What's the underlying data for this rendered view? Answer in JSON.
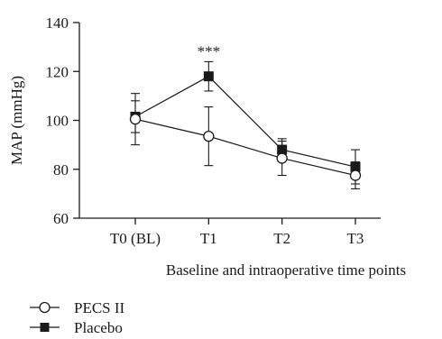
{
  "chart_data": {
    "type": "line",
    "title": "",
    "xlabel": "Baseline and intraoperative time points",
    "ylabel": "MAP (mmHg)",
    "categories": [
      "T0 (BL)",
      "T1",
      "T2",
      "T3"
    ],
    "ylim": [
      60,
      140
    ],
    "yticks": [
      60,
      80,
      100,
      120,
      140
    ],
    "grid": false,
    "legend_position": "bottom-left",
    "series": [
      {
        "name": "PECS II",
        "marker": "open-circle",
        "color": "#1a1a1a",
        "values": [
          100.5,
          93.5,
          84.5,
          77.5
        ],
        "error": [
          10.5,
          12,
          7,
          5.5
        ]
      },
      {
        "name": "Placebo",
        "marker": "filled-square",
        "color": "#1a1a1a",
        "values": [
          101.5,
          118,
          88,
          81
        ],
        "error": [
          6.5,
          6,
          4.5,
          7
        ]
      }
    ],
    "annotations": [
      {
        "text": "***",
        "category": "T1"
      }
    ]
  }
}
